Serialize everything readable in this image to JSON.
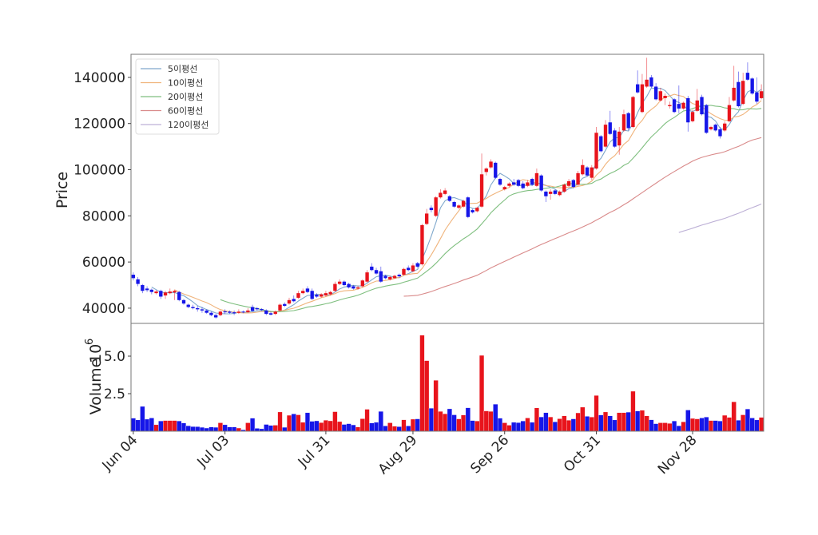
{
  "chart_data": {
    "type": "candlestick",
    "panels": [
      "price",
      "volume"
    ],
    "ylabel": "Price",
    "volume_ylabel": "Volume",
    "volume_scale_label": "10",
    "volume_scale_exp": "6",
    "ylim": [
      33400,
      150000
    ],
    "volume_ylim": [
      0,
      7.18
    ],
    "yticks": [
      40000,
      60000,
      80000,
      100000,
      120000,
      140000
    ],
    "volume_yticks": [
      "2.5",
      "5.0"
    ],
    "volume_ytick_values": [
      2.5,
      5.0
    ],
    "xticks": [
      {
        "index": 0,
        "label": "Jun 04"
      },
      {
        "index": 20,
        "label": "Jul 03"
      },
      {
        "index": 42,
        "label": "Jul 31"
      },
      {
        "index": 61,
        "label": "Aug 29"
      },
      {
        "index": 81,
        "label": "Sep 26"
      },
      {
        "index": 101,
        "label": "Oct 31"
      },
      {
        "index": 122,
        "label": "Nov 28"
      }
    ],
    "legend_position": "top-left",
    "legend": [
      {
        "label": "5이평선",
        "window": 5,
        "color": "#7fa8cc"
      },
      {
        "label": "10이평선",
        "window": 10,
        "color": "#f0b47c"
      },
      {
        "label": "20이평선",
        "window": 20,
        "color": "#7fbf7f"
      },
      {
        "label": "60이평선",
        "window": 60,
        "color": "#d98a8a"
      },
      {
        "label": "120이평선",
        "window": 120,
        "color": "#bdb0d6"
      }
    ],
    "up_color": "#e8141c",
    "down_color": "#1616e8",
    "candle_fields": [
      "open",
      "high",
      "low",
      "close",
      "volume_millions"
    ],
    "candles": [
      [
        54500,
        55500,
        52000,
        53000,
        0.87
      ],
      [
        52500,
        53500,
        49500,
        50500,
        0.75
      ],
      [
        50000,
        50500,
        46500,
        47500,
        1.65
      ],
      [
        48500,
        49500,
        47000,
        47800,
        0.8
      ],
      [
        48000,
        48500,
        46000,
        47000,
        0.88
      ],
      [
        46500,
        47800,
        46000,
        47200,
        0.43
      ],
      [
        47500,
        48000,
        44000,
        45000,
        0.68
      ],
      [
        45500,
        47500,
        44000,
        46800,
        0.71
      ],
      [
        46500,
        48500,
        46000,
        47200,
        0.71
      ],
      [
        46800,
        48000,
        43500,
        47500,
        0.71
      ],
      [
        47000,
        47500,
        43000,
        43500,
        0.68
      ],
      [
        43500,
        44000,
        41500,
        42000,
        0.54
      ],
      [
        41500,
        42000,
        40000,
        40500,
        0.36
      ],
      [
        40500,
        41500,
        39500,
        40000,
        0.31
      ],
      [
        40000,
        41000,
        38500,
        39500,
        0.3
      ],
      [
        39500,
        40500,
        38000,
        39000,
        0.26
      ],
      [
        39000,
        39500,
        37500,
        38000,
        0.21
      ],
      [
        38000,
        38500,
        36500,
        37000,
        0.28
      ],
      [
        37000,
        37500,
        35500,
        36000,
        0.26
      ],
      [
        37000,
        39000,
        36500,
        38500,
        0.56
      ],
      [
        38600,
        39500,
        37500,
        38200,
        0.43
      ],
      [
        38500,
        39000,
        37500,
        38000,
        0.28
      ],
      [
        38200,
        39000,
        37000,
        37800,
        0.28
      ],
      [
        38000,
        39500,
        37500,
        38500,
        0.21
      ],
      [
        38500,
        39000,
        37800,
        38300,
        0.09
      ],
      [
        38300,
        40000,
        38000,
        39000,
        0.56
      ],
      [
        40500,
        41500,
        38500,
        38800,
        0.87
      ],
      [
        40000,
        40500,
        39000,
        39500,
        0.19
      ],
      [
        39600,
        40000,
        38800,
        39200,
        0.16
      ],
      [
        39000,
        39500,
        37000,
        37500,
        0.45
      ],
      [
        37800,
        38500,
        36800,
        37200,
        0.38
      ],
      [
        37500,
        39000,
        37000,
        38500,
        0.4
      ],
      [
        39000,
        42000,
        38500,
        41500,
        1.28
      ],
      [
        41800,
        42500,
        40500,
        41000,
        0.26
      ],
      [
        42000,
        44500,
        41500,
        43500,
        1.06
      ],
      [
        44000,
        45500,
        42500,
        43000,
        1.15
      ],
      [
        44500,
        47500,
        44000,
        46500,
        1.09
      ],
      [
        46500,
        48500,
        46000,
        47500,
        0.59
      ],
      [
        48500,
        49500,
        46500,
        47000,
        1.23
      ],
      [
        47500,
        48500,
        43500,
        44000,
        0.66
      ],
      [
        45800,
        46500,
        44500,
        45000,
        0.69
      ],
      [
        45000,
        46500,
        44500,
        46000,
        0.57
      ],
      [
        45500,
        47500,
        45000,
        46500,
        0.73
      ],
      [
        46000,
        47500,
        45500,
        47000,
        0.69
      ],
      [
        47500,
        51500,
        47000,
        50500,
        1.3
      ],
      [
        50500,
        52500,
        50000,
        51500,
        0.64
      ],
      [
        51500,
        52000,
        49500,
        50000,
        0.45
      ],
      [
        50500,
        51000,
        48500,
        49000,
        0.5
      ],
      [
        49500,
        50000,
        48000,
        48500,
        0.42
      ],
      [
        48500,
        49800,
        48000,
        49000,
        0.28
      ],
      [
        49500,
        52500,
        49000,
        52000,
        0.83
      ],
      [
        51500,
        56500,
        51000,
        55500,
        1.46
      ],
      [
        58000,
        59500,
        56000,
        56500,
        0.54
      ],
      [
        56500,
        57500,
        54500,
        55000,
        0.59
      ],
      [
        56000,
        58000,
        51000,
        51500,
        1.32
      ],
      [
        54000,
        54500,
        52500,
        53000,
        0.35
      ],
      [
        52500,
        54000,
        52000,
        53500,
        0.56
      ],
      [
        53000,
        54500,
        52800,
        54000,
        0.33
      ],
      [
        54500,
        55000,
        53300,
        53800,
        0.3
      ],
      [
        54500,
        57500,
        54000,
        57000,
        0.76
      ],
      [
        57500,
        58500,
        56000,
        56500,
        0.35
      ],
      [
        56000,
        59500,
        55500,
        58500,
        0.8
      ],
      [
        59500,
        60000,
        57500,
        58000,
        0.82
      ],
      [
        59000,
        76500,
        58500,
        76000,
        6.39
      ],
      [
        76500,
        83000,
        76000,
        81000,
        4.7
      ],
      [
        83500,
        84500,
        81500,
        82500,
        1.53
      ],
      [
        80000,
        88500,
        79500,
        88000,
        3.39
      ],
      [
        88000,
        91500,
        87500,
        90000,
        1.32
      ],
      [
        89500,
        92000,
        89000,
        91000,
        1.16
      ],
      [
        88500,
        89000,
        86000,
        86500,
        1.49
      ],
      [
        86000,
        86500,
        83500,
        84000,
        1.09
      ],
      [
        83500,
        85000,
        83000,
        84500,
        0.82
      ],
      [
        84000,
        87000,
        83500,
        86500,
        1.08
      ],
      [
        88000,
        88500,
        79000,
        79500,
        1.56
      ],
      [
        82500,
        83000,
        81000,
        81500,
        0.71
      ],
      [
        82000,
        84000,
        81500,
        83500,
        0.68
      ],
      [
        84000,
        107000,
        83500,
        98000,
        5.05
      ],
      [
        99000,
        101000,
        97500,
        100500,
        1.35
      ],
      [
        101000,
        104500,
        100500,
        103500,
        1.32
      ],
      [
        103000,
        103500,
        96000,
        96500,
        1.8
      ],
      [
        96000,
        96500,
        93000,
        93500,
        0.87
      ],
      [
        91500,
        93000,
        91000,
        92500,
        0.56
      ],
      [
        93000,
        94500,
        92500,
        94000,
        0.4
      ],
      [
        94500,
        96000,
        93000,
        93500,
        0.59
      ],
      [
        95500,
        96000,
        92500,
        93000,
        0.57
      ],
      [
        94000,
        95000,
        91500,
        92000,
        0.68
      ],
      [
        93000,
        95500,
        92500,
        94500,
        0.88
      ],
      [
        96000,
        96500,
        93000,
        93500,
        0.59
      ],
      [
        93000,
        100500,
        92500,
        98500,
        1.55
      ],
      [
        97500,
        98000,
        90500,
        91000,
        0.95
      ],
      [
        90500,
        91000,
        86000,
        88500,
        1.23
      ],
      [
        89500,
        91500,
        87000,
        90500,
        0.95
      ],
      [
        91000,
        91500,
        89000,
        89500,
        0.62
      ],
      [
        89000,
        91000,
        88500,
        90500,
        0.83
      ],
      [
        90500,
        94000,
        90000,
        93500,
        1.02
      ],
      [
        93000,
        96000,
        92500,
        95000,
        0.73
      ],
      [
        95500,
        96000,
        92000,
        92500,
        0.82
      ],
      [
        93500,
        99500,
        93000,
        98500,
        1.22
      ],
      [
        98000,
        104500,
        97500,
        102000,
        1.6
      ],
      [
        101000,
        101500,
        97000,
        97500,
        0.99
      ],
      [
        96500,
        102000,
        95500,
        101000,
        0.94
      ],
      [
        100500,
        118500,
        100000,
        116000,
        2.38
      ],
      [
        114500,
        115000,
        107500,
        108000,
        1.08
      ],
      [
        110000,
        121500,
        109500,
        119500,
        1.28
      ],
      [
        120500,
        125500,
        115000,
        115500,
        1.02
      ],
      [
        117000,
        118000,
        109500,
        110000,
        0.75
      ],
      [
        110500,
        118500,
        106500,
        116500,
        1.23
      ],
      [
        117000,
        126000,
        116500,
        124000,
        1.23
      ],
      [
        124500,
        125000,
        117000,
        118000,
        1.27
      ],
      [
        118500,
        132000,
        118000,
        131500,
        2.66
      ],
      [
        137000,
        143000,
        133000,
        133500,
        1.34
      ],
      [
        125000,
        141500,
        124500,
        137000,
        1.39
      ],
      [
        136000,
        148500,
        135500,
        139000,
        1.02
      ],
      [
        140000,
        141000,
        135500,
        136000,
        0.76
      ],
      [
        136000,
        137500,
        130000,
        130500,
        0.5
      ],
      [
        130000,
        135500,
        129500,
        134000,
        0.56
      ],
      [
        131000,
        133000,
        128000,
        132000,
        0.56
      ],
      [
        127500,
        129500,
        126500,
        128000,
        0.52
      ],
      [
        130500,
        131000,
        124500,
        125000,
        0.68
      ],
      [
        128500,
        136500,
        124500,
        126500,
        0.36
      ],
      [
        126500,
        129500,
        126000,
        129000,
        0.62
      ],
      [
        131000,
        132000,
        116500,
        120500,
        1.41
      ],
      [
        121000,
        126000,
        120500,
        125000,
        0.85
      ],
      [
        125500,
        135000,
        125000,
        130000,
        0.82
      ],
      [
        131500,
        132500,
        123500,
        124000,
        0.88
      ],
      [
        128000,
        128500,
        115500,
        116000,
        0.94
      ],
      [
        117500,
        119000,
        117000,
        118500,
        0.71
      ],
      [
        119500,
        120000,
        116500,
        117000,
        0.71
      ],
      [
        117500,
        118500,
        113500,
        114500,
        0.68
      ],
      [
        117000,
        121000,
        116500,
        120000,
        1.06
      ],
      [
        121000,
        131500,
        120500,
        128000,
        0.92
      ],
      [
        130000,
        145000,
        129500,
        135500,
        1.96
      ],
      [
        138000,
        142500,
        127000,
        127500,
        0.73
      ],
      [
        128500,
        142000,
        128000,
        138500,
        1.09
      ],
      [
        142000,
        146500,
        138500,
        139000,
        1.48
      ],
      [
        139500,
        140000,
        132500,
        133000,
        0.88
      ],
      [
        133500,
        140000,
        128500,
        129500,
        0.75
      ],
      [
        131000,
        137000,
        130500,
        134000,
        0.92
      ]
    ]
  }
}
